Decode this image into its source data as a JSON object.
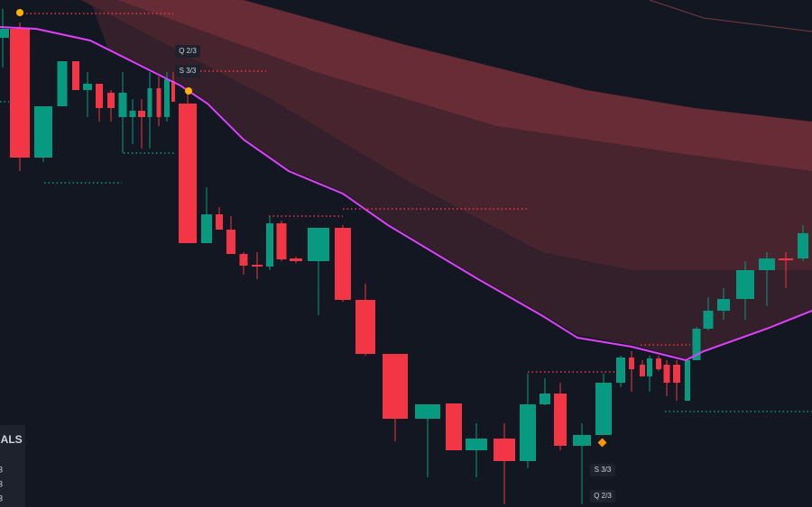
{
  "signals": [
    {
      "text": "Q 2/3"
    },
    {
      "text": "S 3/3"
    },
    {
      "text": "S 3/3"
    },
    {
      "text": "Q 2/3"
    }
  ],
  "panel": {
    "title": "NALS",
    "rows": [
      "3",
      "3",
      "3"
    ]
  }
}
